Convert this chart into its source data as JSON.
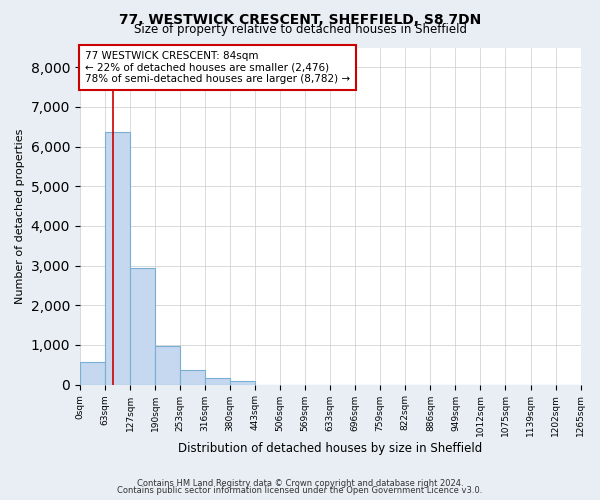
{
  "title": "77, WESTWICK CRESCENT, SHEFFIELD, S8 7DN",
  "subtitle": "Size of property relative to detached houses in Sheffield",
  "xlabel": "Distribution of detached houses by size in Sheffield",
  "ylabel": "Number of detached properties",
  "bin_edges": [
    0,
    63,
    127,
    190,
    253,
    316,
    380,
    443,
    506,
    569,
    633,
    696,
    759,
    822,
    886,
    949,
    1012,
    1075,
    1139,
    1202,
    1265
  ],
  "bin_labels": [
    "0sqm",
    "63sqm",
    "127sqm",
    "190sqm",
    "253sqm",
    "316sqm",
    "380sqm",
    "443sqm",
    "506sqm",
    "569sqm",
    "633sqm",
    "696sqm",
    "759sqm",
    "822sqm",
    "886sqm",
    "949sqm",
    "1012sqm",
    "1075sqm",
    "1139sqm",
    "1202sqm",
    "1265sqm"
  ],
  "bar_heights": [
    560,
    6380,
    2930,
    970,
    380,
    175,
    100,
    0,
    0,
    0,
    0,
    0,
    0,
    0,
    0,
    0,
    0,
    0,
    0,
    0
  ],
  "bar_color": "#c5d8ef",
  "bar_edge_color": "#7aafd4",
  "property_line_x": 84,
  "property_line_color": "#cc0000",
  "ylim": [
    0,
    8500
  ],
  "yticks": [
    0,
    1000,
    2000,
    3000,
    4000,
    5000,
    6000,
    7000,
    8000
  ],
  "annotation_text": "77 WESTWICK CRESCENT: 84sqm\n← 22% of detached houses are smaller (2,476)\n78% of semi-detached houses are larger (8,782) →",
  "annotation_box_color": "#ffffff",
  "annotation_border_color": "#cc0000",
  "background_color": "#e8eef4",
  "plot_bg_color": "#ffffff",
  "footer_line1": "Contains HM Land Registry data © Crown copyright and database right 2024.",
  "footer_line2": "Contains public sector information licensed under the Open Government Licence v3.0.",
  "grid_color": "#cccccc"
}
